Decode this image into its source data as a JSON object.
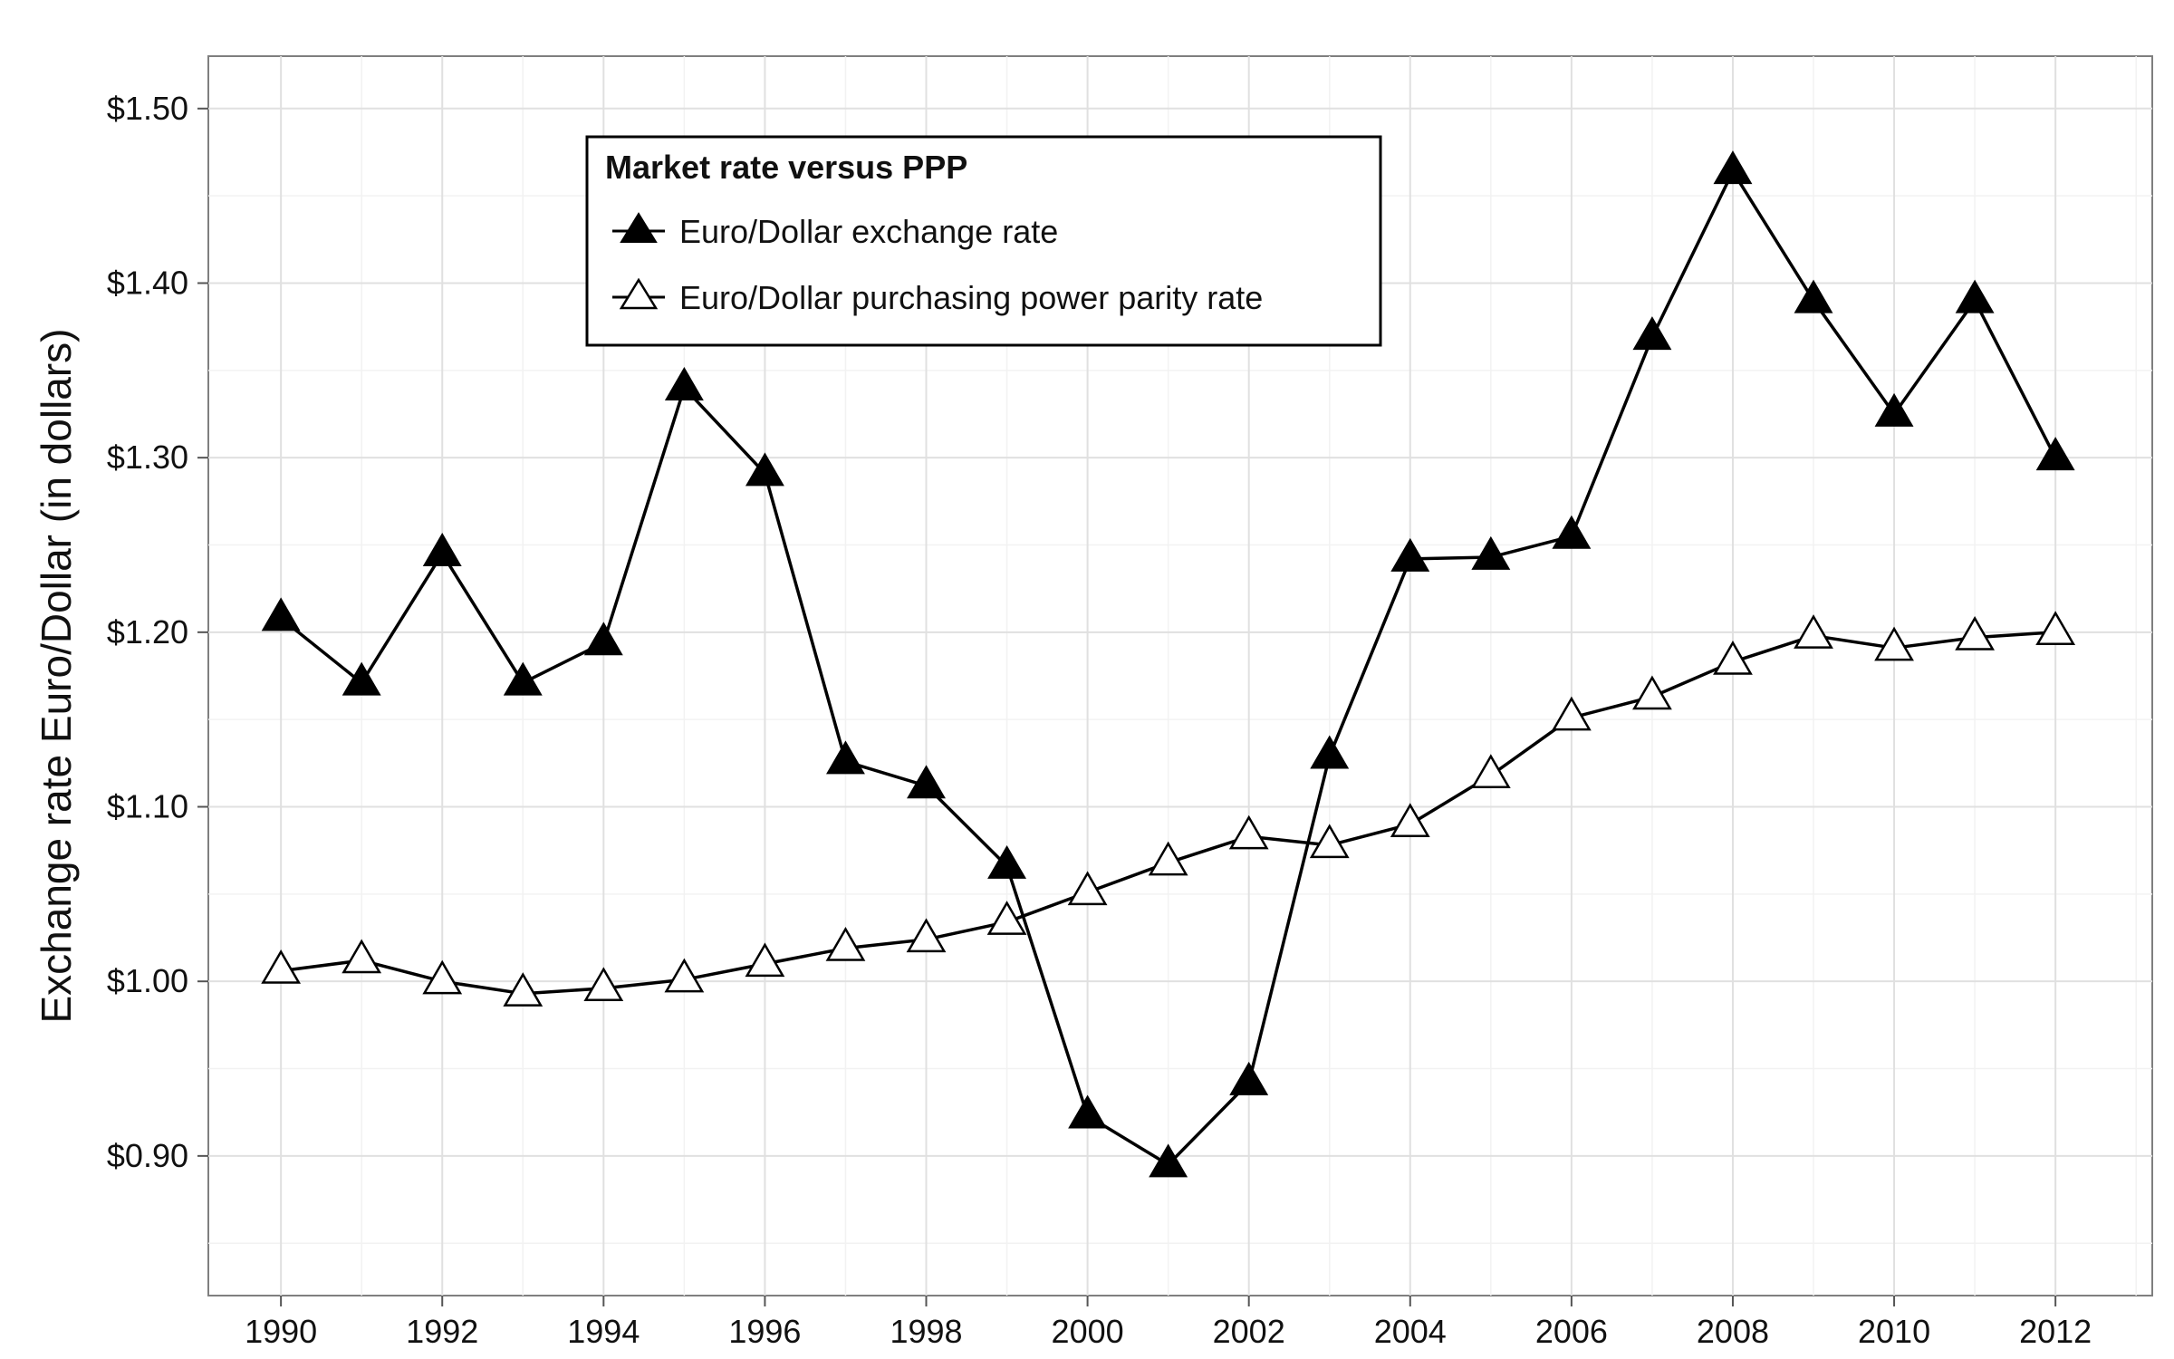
{
  "chart_data": {
    "type": "line",
    "title": "",
    "xlabel": "",
    "ylabel": "Exchange rate Euro/Dollar (in dollars)",
    "x": [
      1990,
      1991,
      1992,
      1993,
      1994,
      1995,
      1996,
      1997,
      1998,
      1999,
      2000,
      2001,
      2002,
      2003,
      2004,
      2005,
      2006,
      2007,
      2008,
      2009,
      2010,
      2011,
      2012
    ],
    "x_ticks": [
      "1990",
      "1992",
      "1994",
      "1996",
      "1998",
      "2000",
      "2002",
      "2004",
      "2006",
      "2008",
      "2010",
      "2012"
    ],
    "y_ticks": [
      "$0.90",
      "$1.00",
      "$1.10",
      "$1.20",
      "$1.30",
      "$1.40",
      "$1.50"
    ],
    "y_tick_values": [
      0.9,
      1.0,
      1.1,
      1.2,
      1.3,
      1.4,
      1.5
    ],
    "xlim": [
      1989.1,
      2013.2
    ],
    "ylim": [
      0.82,
      1.53
    ],
    "grid": true,
    "legend": {
      "title": "Market rate versus PPP",
      "position": "top-left-inside"
    },
    "series": [
      {
        "name": "Euro/Dollar exchange rate",
        "marker": "filled-triangle",
        "color": "#000000",
        "values": [
          1.208,
          1.171,
          1.245,
          1.171,
          1.194,
          1.34,
          1.291,
          1.126,
          1.112,
          1.066,
          0.923,
          0.895,
          0.942,
          1.129,
          1.242,
          1.243,
          1.255,
          1.369,
          1.464,
          1.39,
          1.325,
          1.39,
          1.3
        ]
      },
      {
        "name": "Euro/Dollar purchasing power parity rate",
        "marker": "open-triangle",
        "color": "#000000",
        "values": [
          1.006,
          1.012,
          1.0,
          0.993,
          0.996,
          1.001,
          1.01,
          1.019,
          1.024,
          1.034,
          1.051,
          1.068,
          1.083,
          1.078,
          1.09,
          1.118,
          1.151,
          1.163,
          1.183,
          1.198,
          1.191,
          1.197,
          1.2
        ]
      }
    ]
  }
}
